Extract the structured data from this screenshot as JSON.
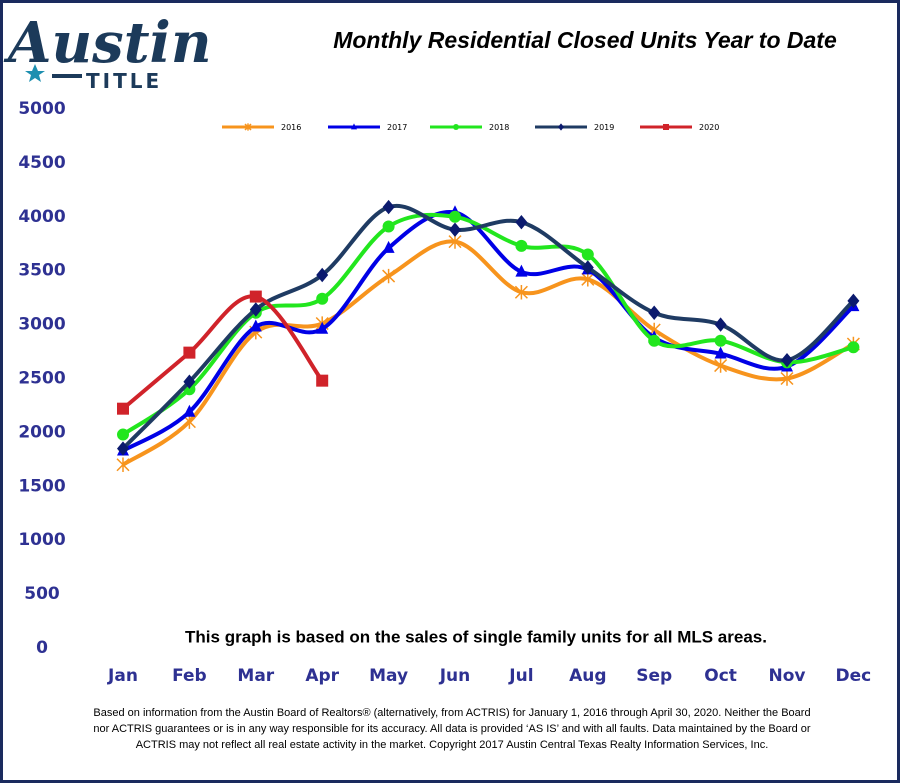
{
  "logo": {
    "name": "Austin",
    "sub": "TITLE"
  },
  "chart_data": {
    "type": "line",
    "title": "Monthly Residential Closed Units Year to Date",
    "note": "This graph is based on the sales of single family units for all MLS areas.",
    "categories": [
      "Jan",
      "Feb",
      "Mar",
      "Apr",
      "May",
      "Jun",
      "Jul",
      "Aug",
      "Sep",
      "Oct",
      "Nov",
      "Dec"
    ],
    "ylim": [
      0,
      5000
    ],
    "yticks": [
      0,
      500,
      1000,
      1500,
      2000,
      2500,
      3000,
      3500,
      4000,
      4500,
      5000
    ],
    "legend": "top",
    "series": [
      {
        "name": "2016",
        "color": "#f7941d",
        "marker": "asterisk",
        "values": [
          1700,
          2100,
          2930,
          3010,
          3450,
          3770,
          3300,
          3420,
          2950,
          2620,
          2500,
          2820
        ]
      },
      {
        "name": "2017",
        "color": "#0000e6",
        "marker": "triangle",
        "values": [
          1830,
          2190,
          2980,
          2960,
          3710,
          4040,
          3490,
          3510,
          2880,
          2730,
          2610,
          3170
        ]
      },
      {
        "name": "2018",
        "color": "#22e61e",
        "marker": "circle",
        "values": [
          1980,
          2400,
          3110,
          3240,
          3910,
          4000,
          3730,
          3650,
          2850,
          2850,
          2650,
          2790
        ]
      },
      {
        "name": "2019",
        "color": "#1f3b63",
        "marker": "diamond",
        "markerColor": "#0b1a6e",
        "values": [
          1850,
          2470,
          3140,
          3460,
          4090,
          3880,
          3950,
          3530,
          3110,
          3000,
          2670,
          3220
        ]
      },
      {
        "name": "2020",
        "color": "#d0232a",
        "marker": "square",
        "values": [
          2220,
          2740,
          3260,
          2480,
          null,
          null,
          null,
          null,
          null,
          null,
          null,
          null
        ]
      }
    ]
  },
  "footer": [
    "Based on information from the Austin Board of Realtors® (alternatively, from ACTRIS) for January 1, 2016 through April 30, 2020.  Neither the Board",
    "nor ACTRIS guarantees or is in any way responsible for its accuracy.  All data is provided ‘AS IS’ and with all faults.  Data maintained by the Board or",
    "ACTRIS may not reflect all real estate activity in the market.  Copyright 2017 Austin Central Texas Realty Information Services, Inc."
  ]
}
